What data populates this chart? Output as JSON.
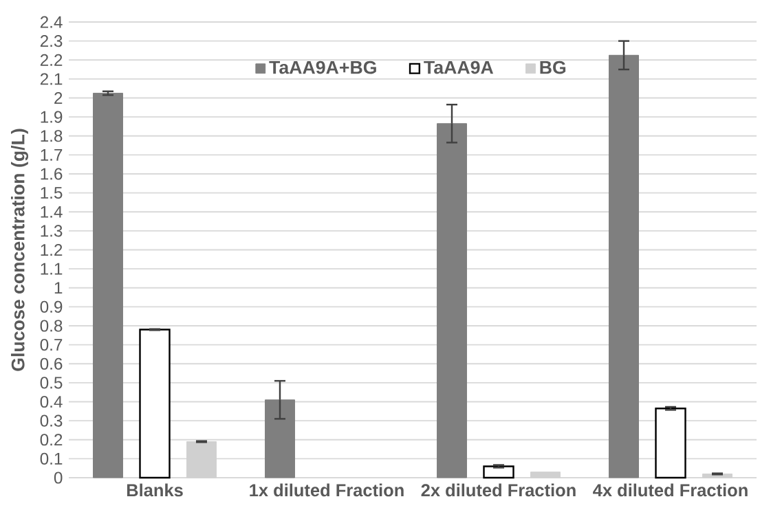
{
  "chart_data": {
    "type": "bar",
    "ylabel": "Glucose concentration (g/L)",
    "categories": [
      "Blanks",
      "1x diluted Fraction",
      "2x diluted Fraction",
      "4x diluted Fraction"
    ],
    "series": [
      {
        "name": "TaAA9A+BG",
        "color": "#7f7f7f",
        "values": [
          2.025,
          0.41,
          1.865,
          2.225
        ],
        "errors": [
          0.01,
          0.1,
          0.1,
          0.075
        ]
      },
      {
        "name": "TaAA9A",
        "color": "#ffffff",
        "values": [
          0.78,
          null,
          0.06,
          0.365
        ],
        "errors": [
          0.003,
          null,
          0.007,
          0.008
        ]
      },
      {
        "name": "BG",
        "color": "#d0d0d0",
        "values": [
          0.19,
          null,
          0.03,
          0.02
        ],
        "errors": [
          0.003,
          null,
          null,
          0.003
        ]
      }
    ],
    "ylim": [
      0,
      2.4
    ],
    "yticks": [
      0,
      0.1,
      0.2,
      0.3,
      0.4,
      0.5,
      0.6,
      0.7,
      0.8,
      0.9,
      1,
      1.1,
      1.2,
      1.3,
      1.4,
      1.5,
      1.6,
      1.7,
      1.8,
      1.9,
      2,
      2.1,
      2.2,
      2.3,
      2.4
    ],
    "grid": "y",
    "legend": "top"
  }
}
